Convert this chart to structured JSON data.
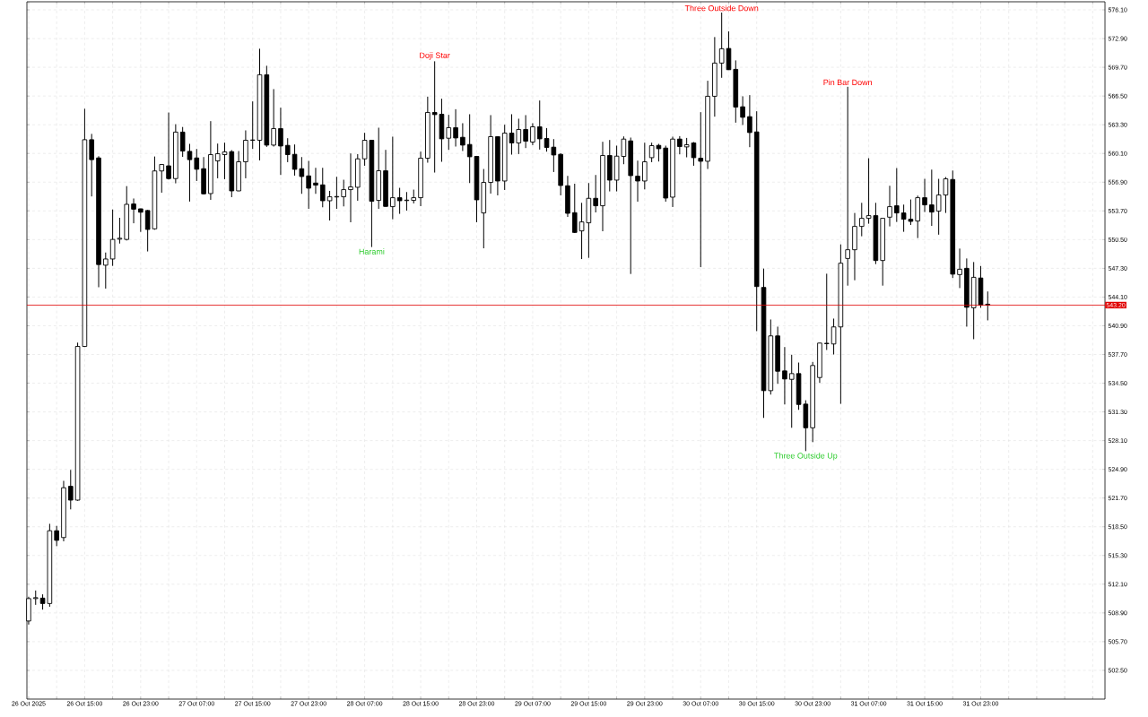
{
  "chart_data": {
    "type": "candlestick",
    "x": [
      "2025-10-26T07:00",
      "2025-10-26T08:00",
      "2025-10-26T09:00",
      "2025-10-26T10:00",
      "2025-10-26T11:00",
      "2025-10-26T12:00",
      "2025-10-26T13:00",
      "2025-10-26T14:00",
      "2025-10-26T15:00",
      "2025-10-26T16:00",
      "2025-10-26T17:00",
      "2025-10-26T18:00",
      "2025-10-26T19:00",
      "2025-10-26T20:00",
      "2025-10-26T21:00",
      "2025-10-26T22:00",
      "2025-10-26T23:00",
      "2025-10-27T00:00",
      "2025-10-27T01:00",
      "2025-10-27T02:00",
      "2025-10-27T03:00",
      "2025-10-27T04:00",
      "2025-10-27T05:00",
      "2025-10-27T06:00",
      "2025-10-27T07:00",
      "2025-10-27T08:00",
      "2025-10-27T09:00",
      "2025-10-27T10:00",
      "2025-10-27T11:00",
      "2025-10-27T12:00",
      "2025-10-27T13:00",
      "2025-10-27T14:00",
      "2025-10-27T15:00",
      "2025-10-27T16:00",
      "2025-10-27T17:00",
      "2025-10-27T18:00",
      "2025-10-27T19:00",
      "2025-10-27T20:00",
      "2025-10-27T21:00",
      "2025-10-27T22:00",
      "2025-10-27T23:00",
      "2025-10-28T00:00",
      "2025-10-28T01:00",
      "2025-10-28T02:00",
      "2025-10-28T03:00",
      "2025-10-28T04:00",
      "2025-10-28T05:00",
      "2025-10-28T06:00",
      "2025-10-28T07:00",
      "2025-10-28T08:00",
      "2025-10-28T09:00",
      "2025-10-28T10:00",
      "2025-10-28T11:00",
      "2025-10-28T12:00",
      "2025-10-28T13:00",
      "2025-10-28T14:00",
      "2025-10-28T15:00",
      "2025-10-28T16:00",
      "2025-10-28T17:00",
      "2025-10-28T18:00",
      "2025-10-28T19:00",
      "2025-10-28T20:00",
      "2025-10-28T21:00",
      "2025-10-28T22:00",
      "2025-10-28T23:00",
      "2025-10-29T00:00",
      "2025-10-29T01:00",
      "2025-10-29T02:00",
      "2025-10-29T03:00",
      "2025-10-29T04:00",
      "2025-10-29T05:00",
      "2025-10-29T06:00",
      "2025-10-29T07:00",
      "2025-10-29T08:00",
      "2025-10-29T09:00",
      "2025-10-29T10:00",
      "2025-10-29T11:00",
      "2025-10-29T12:00",
      "2025-10-29T13:00",
      "2025-10-29T14:00",
      "2025-10-29T15:00",
      "2025-10-29T16:00",
      "2025-10-29T17:00",
      "2025-10-29T18:00",
      "2025-10-29T19:00",
      "2025-10-29T20:00",
      "2025-10-29T21:00",
      "2025-10-29T22:00",
      "2025-10-29T23:00",
      "2025-10-30T00:00",
      "2025-10-30T01:00",
      "2025-10-30T02:00",
      "2025-10-30T03:00",
      "2025-10-30T04:00",
      "2025-10-30T05:00",
      "2025-10-30T06:00",
      "2025-10-30T07:00",
      "2025-10-30T08:00",
      "2025-10-30T09:00",
      "2025-10-30T10:00",
      "2025-10-30T11:00",
      "2025-10-30T12:00",
      "2025-10-30T13:00",
      "2025-10-30T14:00",
      "2025-10-30T15:00",
      "2025-10-30T16:00",
      "2025-10-30T17:00",
      "2025-10-30T18:00",
      "2025-10-30T19:00",
      "2025-10-30T20:00",
      "2025-10-30T21:00",
      "2025-10-30T22:00",
      "2025-10-30T23:00",
      "2025-10-31T00:00",
      "2025-10-31T01:00",
      "2025-10-31T02:00",
      "2025-10-31T03:00",
      "2025-10-31T04:00",
      "2025-10-31T05:00",
      "2025-10-31T06:00",
      "2025-10-31T07:00",
      "2025-10-31T08:00",
      "2025-10-31T09:00",
      "2025-10-31T10:00",
      "2025-10-31T11:00",
      "2025-10-31T12:00",
      "2025-10-31T13:00",
      "2025-10-31T14:00",
      "2025-10-31T15:00",
      "2025-10-31T16:00",
      "2025-10-31T17:00",
      "2025-10-31T18:00",
      "2025-10-31T19:00",
      "2025-10-31T20:00",
      "2025-10-31T21:00",
      "2025-10-31T22:00",
      "2025-10-31T23:00",
      "2025-11-01T00:00"
    ],
    "ohlc": [
      [
        508.0,
        510.7,
        507.6,
        510.5
      ],
      [
        510.5,
        511.4,
        509.8,
        510.6
      ],
      [
        510.55,
        510.97,
        509.27,
        509.95
      ],
      [
        509.95,
        518.83,
        509.59,
        518.06
      ],
      [
        518.06,
        518.6,
        516.34,
        516.99
      ],
      [
        517.3,
        523.62,
        516.88,
        522.85
      ],
      [
        523.01,
        524.84,
        520.44,
        521.47
      ],
      [
        521.47,
        539.02,
        521.4,
        538.6
      ],
      [
        538.6,
        565.08,
        538.53,
        561.63
      ],
      [
        561.63,
        562.28,
        555.31,
        559.41
      ],
      [
        559.6,
        559.79,
        545.19,
        547.72
      ],
      [
        547.65,
        549.06,
        545.04,
        548.34
      ],
      [
        548.34,
        553.85,
        547.57,
        550.52
      ],
      [
        550.55,
        552.93,
        550.06,
        550.65
      ],
      [
        550.52,
        556.46,
        550.4,
        554.43
      ],
      [
        554.47,
        555.08,
        552.32,
        553.89
      ],
      [
        553.93,
        553.95,
        551.36,
        553.55
      ],
      [
        553.74,
        553.8,
        549.18,
        551.63
      ],
      [
        551.7,
        559.76,
        551.6,
        558.15
      ],
      [
        558.15,
        558.9,
        555.73,
        558.87
      ],
      [
        558.72,
        564.66,
        557.19,
        557.3
      ],
      [
        557.3,
        563.36,
        556.77,
        562.48
      ],
      [
        562.48,
        563.05,
        559.72,
        560.37
      ],
      [
        560.33,
        561.17,
        554.74,
        559.41
      ],
      [
        559.6,
        560.6,
        557.03,
        558.34
      ],
      [
        558.4,
        559.7,
        555.53,
        555.6
      ],
      [
        555.63,
        563.7,
        554.93,
        559.97
      ],
      [
        559.27,
        561.2,
        557.33,
        560.07
      ],
      [
        559.97,
        561.3,
        557.23,
        560.27
      ],
      [
        560.3,
        560.47,
        555.23,
        555.93
      ],
      [
        555.93,
        560.37,
        555.9,
        559.17
      ],
      [
        559.17,
        562.67,
        557.33,
        561.57
      ],
      [
        561.57,
        565.9,
        560.6,
        561.6
      ],
      [
        561.57,
        571.77,
        559.33,
        568.87
      ],
      [
        568.87,
        569.87,
        560.83,
        561.03
      ],
      [
        561.03,
        567.27,
        560.87,
        562.87
      ],
      [
        562.87,
        565.2,
        557.7,
        560.93
      ],
      [
        561.0,
        561.8,
        559.13,
        559.97
      ],
      [
        560.0,
        561.1,
        557.63,
        558.33
      ],
      [
        558.4,
        559.7,
        555.6,
        557.53
      ],
      [
        557.6,
        559.27,
        553.93,
        556.23
      ],
      [
        556.8,
        558.5,
        555.6,
        556.57
      ],
      [
        556.6,
        558.5,
        554.1,
        554.83
      ],
      [
        554.83,
        555.93,
        552.63,
        555.27
      ],
      [
        555.25,
        557.5,
        553.93,
        555.3
      ],
      [
        555.27,
        557.17,
        554.2,
        556.07
      ],
      [
        556.07,
        560.1,
        552.43,
        556.37
      ],
      [
        556.33,
        560.03,
        554.83,
        559.5
      ],
      [
        559.5,
        562.4,
        558.73,
        561.57
      ],
      [
        561.57,
        561.6,
        549.67,
        554.77
      ],
      [
        554.87,
        562.97,
        553.93,
        558.17
      ],
      [
        558.17,
        560.5,
        554.17,
        554.2
      ],
      [
        554.17,
        561.97,
        552.77,
        555.17
      ],
      [
        555.17,
        556.27,
        553.37,
        554.83
      ],
      [
        554.85,
        555.8,
        553.73,
        554.9
      ],
      [
        554.87,
        556.07,
        554.53,
        555.17
      ],
      [
        555.17,
        560.3,
        554.23,
        559.57
      ],
      [
        559.57,
        566.43,
        559.07,
        564.67
      ],
      [
        564.67,
        570.37,
        557.97,
        564.43
      ],
      [
        564.47,
        566.2,
        559.17,
        561.73
      ],
      [
        561.8,
        564.4,
        560.5,
        562.97
      ],
      [
        562.97,
        565.03,
        560.87,
        561.83
      ],
      [
        561.9,
        563.47,
        560.37,
        561.03
      ],
      [
        561.1,
        564.47,
        556.8,
        559.73
      ],
      [
        559.77,
        559.8,
        552.43,
        554.93
      ],
      [
        553.47,
        558.37,
        549.53,
        556.87
      ],
      [
        556.87,
        564.37,
        555.63,
        561.97
      ],
      [
        561.97,
        562.0,
        555.43,
        557.03
      ],
      [
        557.03,
        563.3,
        556.03,
        562.37
      ],
      [
        562.37,
        564.47,
        559.97,
        561.27
      ],
      [
        561.27,
        563.97,
        560.03,
        562.77
      ],
      [
        562.77,
        564.37,
        560.7,
        561.47
      ],
      [
        561.37,
        563.47,
        561.03,
        563.07
      ],
      [
        563.07,
        566.0,
        560.53,
        561.73
      ],
      [
        561.77,
        562.93,
        560.3,
        560.77
      ],
      [
        560.8,
        561.7,
        558.03,
        559.93
      ],
      [
        560.0,
        560.13,
        555.43,
        556.53
      ],
      [
        556.5,
        557.6,
        553.03,
        553.43
      ],
      [
        553.5,
        556.73,
        551.23,
        551.3
      ],
      [
        551.47,
        554.6,
        548.33,
        552.47
      ],
      [
        552.37,
        556.8,
        548.47,
        555.1
      ],
      [
        555.1,
        557.7,
        553.53,
        554.27
      ],
      [
        554.27,
        561.4,
        551.43,
        559.87
      ],
      [
        559.87,
        561.6,
        555.87,
        557.13
      ],
      [
        557.13,
        560.97,
        555.87,
        559.8
      ],
      [
        559.77,
        562.0,
        558.9,
        561.7
      ],
      [
        561.5,
        561.87,
        546.67,
        557.63
      ],
      [
        557.57,
        559.3,
        554.73,
        557.03
      ],
      [
        557.03,
        561.3,
        556.1,
        559.17
      ],
      [
        559.63,
        561.3,
        559.13,
        560.97
      ],
      [
        561.0,
        561.17,
        559.2,
        560.63
      ],
      [
        560.7,
        560.97,
        554.73,
        555.13
      ],
      [
        555.23,
        561.97,
        554.13,
        561.7
      ],
      [
        561.7,
        562.03,
        560.0,
        560.87
      ],
      [
        560.83,
        561.83,
        559.67,
        561.07
      ],
      [
        561.27,
        561.37,
        558.73,
        559.63
      ],
      [
        559.57,
        564.7,
        547.43,
        559.23
      ],
      [
        559.23,
        568.2,
        558.37,
        566.47
      ],
      [
        566.47,
        573.07,
        564.2,
        570.17
      ],
      [
        570.17,
        575.8,
        568.53,
        571.77
      ],
      [
        571.8,
        573.7,
        569.43,
        569.43
      ],
      [
        569.47,
        570.47,
        563.53,
        565.27
      ],
      [
        565.3,
        566.47,
        563.27,
        564.13
      ],
      [
        564.2,
        566.6,
        560.8,
        562.43
      ],
      [
        562.5,
        564.8,
        540.3,
        545.27
      ],
      [
        545.17,
        547.27,
        530.63,
        533.67
      ],
      [
        533.67,
        541.6,
        533.23,
        539.77
      ],
      [
        539.77,
        540.8,
        534.43,
        535.83
      ],
      [
        535.87,
        538.53,
        532.13,
        534.97
      ],
      [
        534.93,
        537.67,
        529.53,
        535.57
      ],
      [
        535.57,
        536.8,
        531.53,
        532.13
      ],
      [
        532.17,
        532.6,
        526.93,
        529.53
      ],
      [
        529.53,
        536.87,
        527.93,
        536.47
      ],
      [
        535.13,
        539.0,
        534.53,
        538.97
      ],
      [
        538.9,
        546.7,
        538.2,
        538.95
      ],
      [
        538.87,
        541.7,
        537.7,
        540.77
      ],
      [
        540.77,
        549.97,
        532.2,
        547.87
      ],
      [
        548.4,
        567.53,
        545.37,
        549.37
      ],
      [
        549.37,
        553.47,
        545.97,
        551.97
      ],
      [
        551.97,
        554.6,
        550.87,
        552.87
      ],
      [
        552.87,
        559.57,
        552.27,
        553.17
      ],
      [
        553.17,
        554.6,
        547.77,
        548.17
      ],
      [
        548.17,
        552.87,
        545.37,
        552.87
      ],
      [
        553.0,
        556.5,
        551.97,
        554.17
      ],
      [
        554.27,
        558.47,
        552.47,
        553.47
      ],
      [
        553.47,
        554.4,
        551.37,
        552.77
      ],
      [
        552.77,
        554.97,
        552.13,
        552.53
      ],
      [
        552.57,
        555.4,
        550.67,
        555.17
      ],
      [
        555.17,
        557.27,
        553.57,
        554.37
      ],
      [
        554.37,
        558.3,
        552.03,
        553.57
      ],
      [
        553.67,
        557.27,
        551.05,
        555.47
      ],
      [
        555.47,
        557.47,
        553.47,
        557.27
      ],
      [
        557.2,
        558.2,
        546.22,
        546.65
      ],
      [
        546.6,
        549.5,
        545.1,
        547.2
      ],
      [
        547.3,
        548.4,
        540.8,
        542.96
      ],
      [
        542.9,
        548.0,
        539.4,
        546.3
      ],
      [
        546.22,
        547.56,
        542.9,
        543.2
      ],
      [
        543.3,
        544.72,
        541.5,
        543.2
      ]
    ],
    "xlim": [
      "2025-10-26T06:45",
      "2025-11-01T16:45"
    ],
    "xticks": [
      {
        "value": "2025-10-26T07:00",
        "label": "26 Oct 2025"
      },
      {
        "value": "2025-10-26T11:00",
        "label": null
      },
      {
        "value": "2025-10-26T15:00",
        "label": "26 Oct 15:00"
      },
      {
        "value": "2025-10-26T19:00",
        "label": null
      },
      {
        "value": "2025-10-26T23:00",
        "label": "26 Oct 23:00"
      },
      {
        "value": "2025-10-27T03:00",
        "label": null
      },
      {
        "value": "2025-10-27T07:00",
        "label": "27 Oct 07:00"
      },
      {
        "value": "2025-10-27T11:00",
        "label": null
      },
      {
        "value": "2025-10-27T15:00",
        "label": "27 Oct 15:00"
      },
      {
        "value": "2025-10-27T19:00",
        "label": null
      },
      {
        "value": "2025-10-27T23:00",
        "label": "27 Oct 23:00"
      },
      {
        "value": "2025-10-28T03:00",
        "label": null
      },
      {
        "value": "2025-10-28T07:00",
        "label": "28 Oct 07:00"
      },
      {
        "value": "2025-10-28T11:00",
        "label": null
      },
      {
        "value": "2025-10-28T15:00",
        "label": "28 Oct 15:00"
      },
      {
        "value": "2025-10-28T19:00",
        "label": null
      },
      {
        "value": "2025-10-28T23:00",
        "label": "28 Oct 23:00"
      },
      {
        "value": "2025-10-29T03:00",
        "label": null
      },
      {
        "value": "2025-10-29T07:00",
        "label": "29 Oct 07:00"
      },
      {
        "value": "2025-10-29T11:00",
        "label": null
      },
      {
        "value": "2025-10-29T15:00",
        "label": "29 Oct 15:00"
      },
      {
        "value": "2025-10-29T19:00",
        "label": null
      },
      {
        "value": "2025-10-29T23:00",
        "label": "29 Oct 23:00"
      },
      {
        "value": "2025-10-30T03:00",
        "label": null
      },
      {
        "value": "2025-10-30T07:00",
        "label": "30 Oct 07:00"
      },
      {
        "value": "2025-10-30T11:00",
        "label": null
      },
      {
        "value": "2025-10-30T15:00",
        "label": "30 Oct 15:00"
      },
      {
        "value": "2025-10-30T19:00",
        "label": null
      },
      {
        "value": "2025-10-30T23:00",
        "label": "30 Oct 23:00"
      },
      {
        "value": "2025-10-31T03:00",
        "label": null
      },
      {
        "value": "2025-10-31T07:00",
        "label": "31 Oct 07:00"
      },
      {
        "value": "2025-10-31T11:00",
        "label": null
      },
      {
        "value": "2025-10-31T15:00",
        "label": "31 Oct 15:00"
      },
      {
        "value": "2025-10-31T19:00",
        "label": null
      },
      {
        "value": "2025-10-31T23:00",
        "label": "31 Oct 23:00"
      },
      {
        "value": "2025-11-01T03:00",
        "label": null
      },
      {
        "value": "2025-11-01T07:00",
        "label": null
      },
      {
        "value": "2025-11-01T11:00",
        "label": null
      },
      {
        "value": "2025-11-01T15:00",
        "label": null
      }
    ],
    "ylim": [
      499.3,
      577.0
    ],
    "yticks": [
      {
        "value": 502.5,
        "label": "502.50"
      },
      {
        "value": 505.7,
        "label": "505.70"
      },
      {
        "value": 508.9,
        "label": "508.90"
      },
      {
        "value": 512.1,
        "label": "512.10"
      },
      {
        "value": 515.3,
        "label": "515.30"
      },
      {
        "value": 518.5,
        "label": "518.50"
      },
      {
        "value": 521.7,
        "label": "521.70"
      },
      {
        "value": 524.9,
        "label": "524.90"
      },
      {
        "value": 528.1,
        "label": "528.10"
      },
      {
        "value": 531.3,
        "label": "531.30"
      },
      {
        "value": 534.5,
        "label": "534.50"
      },
      {
        "value": 537.7,
        "label": "537.70"
      },
      {
        "value": 540.9,
        "label": "540.90"
      },
      {
        "value": 544.1,
        "label": "544.10"
      },
      {
        "value": 547.3,
        "label": "547.30"
      },
      {
        "value": 550.5,
        "label": "550.50"
      },
      {
        "value": 553.7,
        "label": "553.70"
      },
      {
        "value": 556.9,
        "label": "556.90"
      },
      {
        "value": 560.1,
        "label": "560.10"
      },
      {
        "value": 563.3,
        "label": "563.30"
      },
      {
        "value": 566.5,
        "label": "566.50"
      },
      {
        "value": 569.7,
        "label": "569.70"
      },
      {
        "value": 572.9,
        "label": "572.90"
      },
      {
        "value": 576.1,
        "label": "576.10"
      }
    ],
    "grid": true,
    "ref_lines": [
      {
        "axis": "y",
        "value": 543.2,
        "label": "543.20",
        "color": "#e00000"
      }
    ],
    "annotations": [
      {
        "text": "Three Outside Down",
        "x": "2025-10-30T10:00",
        "y": 575.8
      },
      {
        "text": "Doji Star",
        "x": "2025-10-28T17:00",
        "y": 570.37
      },
      {
        "text": "Pin Bar Down",
        "x": "2025-10-31T04:00",
        "y": 567.53
      },
      {
        "text": "Harami",
        "x": "2025-10-28T08:00",
        "y": 549.67
      },
      {
        "text": "Three Outside Up",
        "x": "2025-10-30T22:00",
        "y": 526.93
      }
    ]
  }
}
